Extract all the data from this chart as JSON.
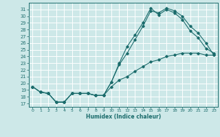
{
  "xlabel": "Humidex (Indice chaleur)",
  "bg_color": "#cde8e8",
  "grid_color": "#ffffff",
  "line_color": "#1a6b6b",
  "xlim": [
    -0.5,
    23.5
  ],
  "ylim": [
    16.5,
    32
  ],
  "yticks": [
    17,
    18,
    19,
    20,
    21,
    22,
    23,
    24,
    25,
    26,
    27,
    28,
    29,
    30,
    31
  ],
  "xticks": [
    0,
    1,
    2,
    3,
    4,
    5,
    6,
    7,
    8,
    9,
    10,
    11,
    12,
    13,
    14,
    15,
    16,
    17,
    18,
    19,
    20,
    21,
    22,
    23
  ],
  "line1_x": [
    0,
    1,
    2,
    3,
    4,
    5,
    6,
    7,
    8,
    9,
    10,
    11,
    12,
    13,
    14,
    15,
    16,
    17,
    18,
    19,
    20,
    21,
    22,
    23
  ],
  "line1_y": [
    19.5,
    18.7,
    18.5,
    17.2,
    17.2,
    18.5,
    18.5,
    18.5,
    18.2,
    18.2,
    20.2,
    23.0,
    25.5,
    27.2,
    29.0,
    31.2,
    30.2,
    31.0,
    30.5,
    29.5,
    27.8,
    26.8,
    25.2,
    24.5
  ],
  "line2_x": [
    0,
    1,
    2,
    3,
    4,
    5,
    6,
    7,
    8,
    9,
    10,
    11,
    12,
    13,
    14,
    15,
    16,
    17,
    18,
    19,
    20,
    21,
    22,
    23
  ],
  "line2_y": [
    19.5,
    18.7,
    18.5,
    17.2,
    17.2,
    18.5,
    18.5,
    18.5,
    18.2,
    18.2,
    20.2,
    22.8,
    24.5,
    26.5,
    28.5,
    30.8,
    30.5,
    31.2,
    30.8,
    30.0,
    28.5,
    27.5,
    26.0,
    24.2
  ],
  "line3_x": [
    0,
    1,
    2,
    3,
    4,
    5,
    6,
    7,
    8,
    9,
    10,
    11,
    12,
    13,
    14,
    15,
    16,
    17,
    18,
    19,
    20,
    21,
    22,
    23
  ],
  "line3_y": [
    19.5,
    18.7,
    18.5,
    17.2,
    17.2,
    18.5,
    18.5,
    18.5,
    18.2,
    18.2,
    19.5,
    20.5,
    21.0,
    21.8,
    22.5,
    23.2,
    23.5,
    24.0,
    24.2,
    24.5,
    24.5,
    24.5,
    24.2,
    24.2
  ]
}
